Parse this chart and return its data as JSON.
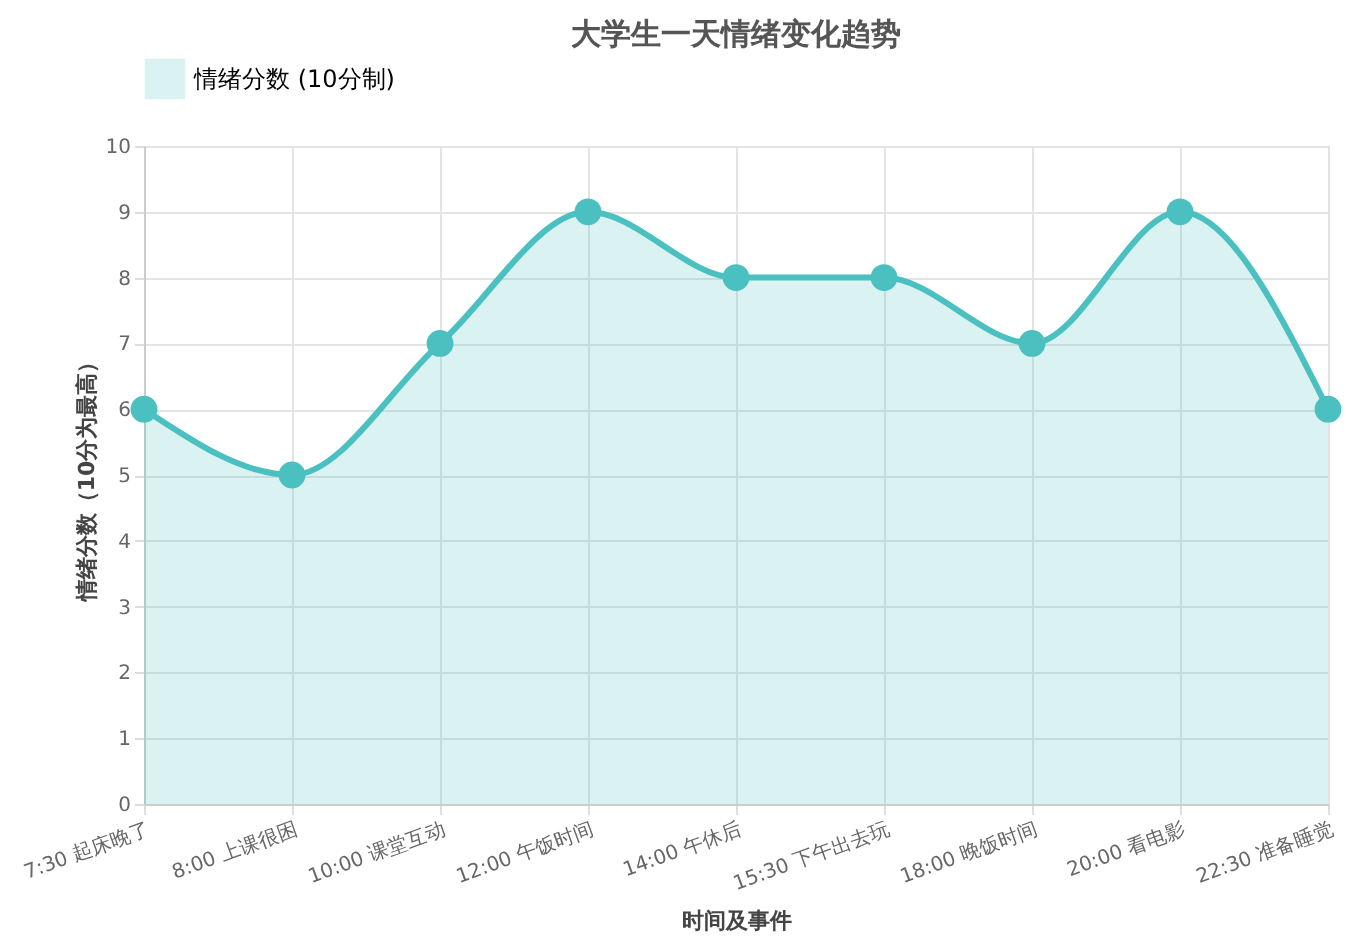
{
  "chart_data": {
    "type": "area",
    "title": "大学生一天情绪变化趋势",
    "xlabel": "时间及事件",
    "ylabel": "情绪分数（10分为最高）",
    "categories": [
      "7:30 起床晚了",
      "8:00 上课很困",
      "10:00 课堂互动",
      "12:00 午饭时间",
      "14:00 午休后",
      "15:30 下午出去玩",
      "18:00 晚饭时间",
      "20:00 看电影",
      "22:30 准备睡觉"
    ],
    "series": [
      {
        "name": "情绪分数 (10分制)",
        "color": "#4bc0c0",
        "values": [
          6,
          5,
          7,
          9,
          8,
          8,
          7,
          9,
          6
        ]
      }
    ],
    "ylim": [
      0,
      10
    ],
    "yticks": [
      0,
      1,
      2,
      3,
      4,
      5,
      6,
      7,
      8,
      9,
      10
    ],
    "grid": true,
    "legend": "top",
    "marker": "circle",
    "line_style": "solid"
  }
}
